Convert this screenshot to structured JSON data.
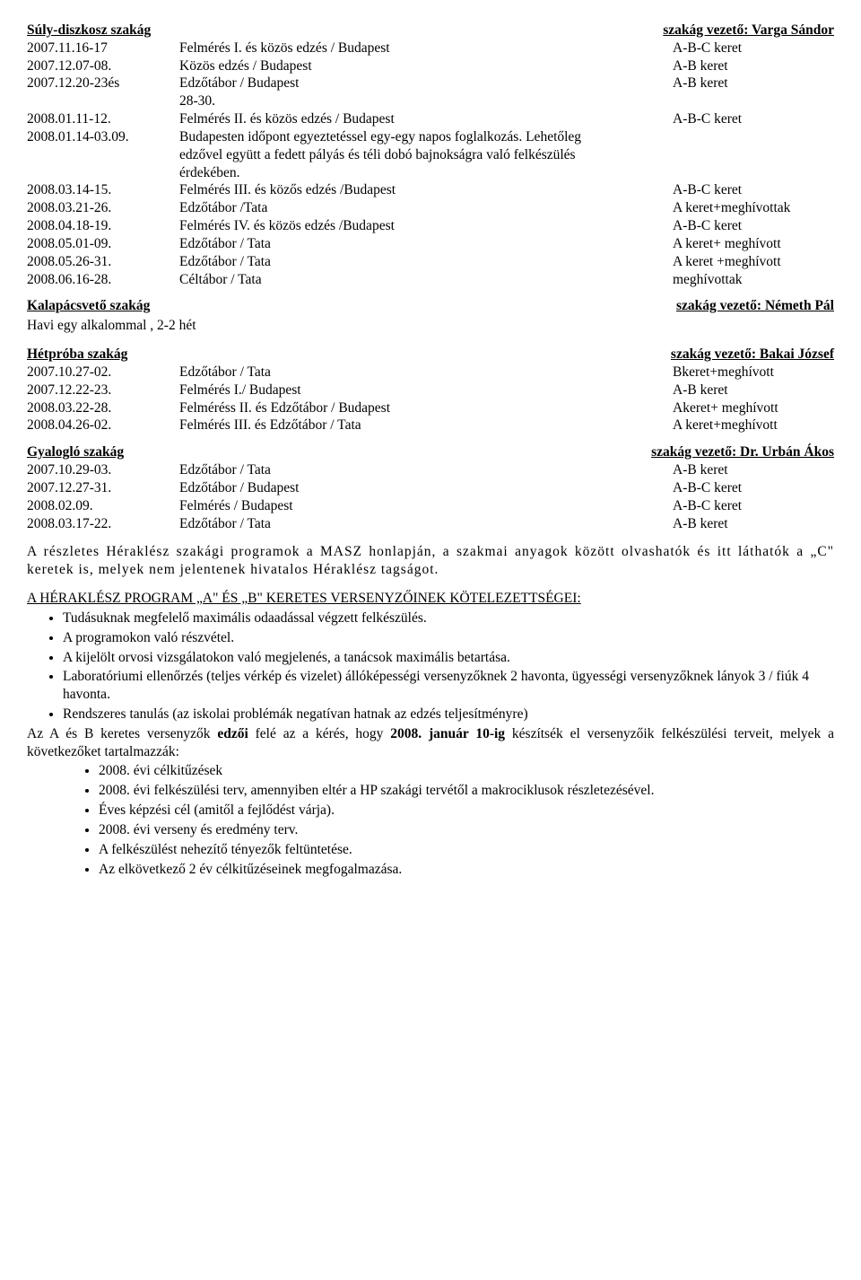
{
  "sections": [
    {
      "heading_left": "Súly-diszkosz szakág",
      "heading_right": "szakág vezető: Varga Sándor",
      "rows": [
        {
          "date": "2007.11.16-17",
          "desc": "Felmérés I. és közös edzés / Budapest",
          "ket": "A-B-C keret"
        },
        {
          "date": "2007.12.07-08.",
          "desc": "Közös edzés / Budapest",
          "ket": "A-B keret"
        },
        {
          "date": "2007.12.20-23és",
          "desc": "Edzőtábor / Budapest",
          "ket": "A-B keret"
        },
        {
          "date": "",
          "desc": "28-30.",
          "ket": "",
          "indent": true
        },
        {
          "date": "2008.01.11-12.",
          "desc": "Felmérés II. és közös edzés / Budapest",
          "ket": "A-B-C keret"
        },
        {
          "date": "2008.01.14-03.09.",
          "desc": "Budapesten időpont egyeztetéssel egy-egy napos foglalkozás. Lehetőleg",
          "ket": ""
        },
        {
          "date": "",
          "desc": "edzővel együtt a fedett pályás és téli dobó bajnokságra való felkészülés",
          "ket": "",
          "indent": true
        },
        {
          "date": "",
          "desc": "érdekében.",
          "ket": "",
          "indent": true
        },
        {
          "date": "2008.03.14-15.",
          "desc": "Felmérés III. és közős edzés /Budapest",
          "ket": "A-B-C keret"
        },
        {
          "date": "2008.03.21-26.",
          "desc": "Edzőtábor /Tata",
          "ket": "A keret+meghívottak"
        },
        {
          "date": "2008.04.18-19.",
          "desc": " Felmérés IV. és közös edzés /Budapest",
          "ket": "A-B-C keret"
        },
        {
          "date": "2008.05.01-09.",
          "desc": "Edzőtábor / Tata",
          "ket": "A keret+ meghívott"
        },
        {
          "date": "2008.05.26-31.",
          "desc": "Edzőtábor / Tata",
          "ket": "A keret +meghívott"
        },
        {
          "date": "2008.06.16-28.",
          "desc": "Céltábor / Tata",
          "ket": "meghívottak"
        }
      ]
    },
    {
      "heading_left": "Kalapácsvető szakág",
      "heading_right": "szakág vezető: Németh Pál",
      "rows": [
        {
          "date": "",
          "desc": "Havi egy alkalommal , 2-2 hét",
          "ket": "",
          "plain": true
        }
      ]
    },
    {
      "heading_left": "Hétpróba szakág",
      "heading_right": "szakág vezető: Bakai József",
      "rows": [
        {
          "date": "2007.10.27-02.",
          "desc": " Edzőtábor / Tata",
          "ket": "Bkeret+meghívott"
        },
        {
          "date": "2007.12.22-23.",
          "desc": "Felmérés I./ Budapest",
          "ket": "A-B keret"
        },
        {
          "date": "2008.03.22-28.",
          "desc": "Felméréss II. és Edzőtábor / Budapest",
          "ket": "Akeret+ meghívott"
        },
        {
          "date": "2008.04.26-02.",
          "desc": "Felmérés III. és Edzőtábor / Tata",
          "ket": "A keret+meghívott"
        }
      ]
    },
    {
      "heading_left": "Gyalogló szakág",
      "heading_right": "szakág vezető: Dr. Urbán Ákos",
      "rows": [
        {
          "date": "2007.10.29-03.",
          "desc": "Edzőtábor / Tata",
          "ket": "A-B keret"
        },
        {
          "date": "2007.12.27-31.",
          "desc": "Edzőtábor / Budapest",
          "ket": "A-B-C keret"
        },
        {
          "date": "2008.02.09.",
          "desc": "Felmérés / Budapest",
          "ket": "A-B-C keret"
        },
        {
          "date": "2008.03.17-22.",
          "desc": "Edzőtábor / Tata",
          "ket": "A-B keret"
        }
      ]
    }
  ],
  "paragraph1": "A részletes Héraklész szakági programok a MASZ honlapján, a szakmai anyagok között olvashatók és itt láthatók a „C\" keretek is, melyek nem jelentenek hivatalos Héraklész tagságot.",
  "obligations_title": "A HÉRAKLÉSZ PROGRAM „A\" ÉS „B\" KERETES VERSENYZŐINEK KÖTELEZETTSÉGEI:",
  "obligations": [
    "Tudásuknak megfelelő maximális odaadással végzett felkészülés.",
    "A programokon való részvétel.",
    "A kijelölt orvosi vizsgálatokon való megjelenés, a tanácsok maximális betartása.",
    "Laboratóriumi ellenőrzés (teljes vérkép és vizelet) állóképességi versenyzőknek 2 havonta, ügyességi versenyzőknek lányok 3 / fiúk 4 havonta.",
    "Rendszeres tanulás (az iskolai problémák negatívan hatnak az edzés teljesítményre)"
  ],
  "coach_line_prefix": "Az A és B keretes versenyzők ",
  "coach_line_bold1": "edzői",
  "coach_line_mid": " felé az a kérés, hogy ",
  "coach_line_bold2": "2008. január 10-ig",
  "coach_line_suffix": " készítsék el versenyzőik felkészülési terveit, melyek a következőket tartalmazzák:",
  "sub_items": [
    "2008. évi célkitűzések",
    "2008. évi felkészülési terv, amennyiben eltér a HP szakági tervétől a makrociklusok részletezésével.",
    "Éves képzési cél (amitől a fejlődést várja).",
    "2008. évi verseny és eredmény terv.",
    "A felkészülést nehezítő tényezők feltüntetése.",
    "Az elkövetkező 2 év célkitűzéseinek megfogalmazása."
  ]
}
